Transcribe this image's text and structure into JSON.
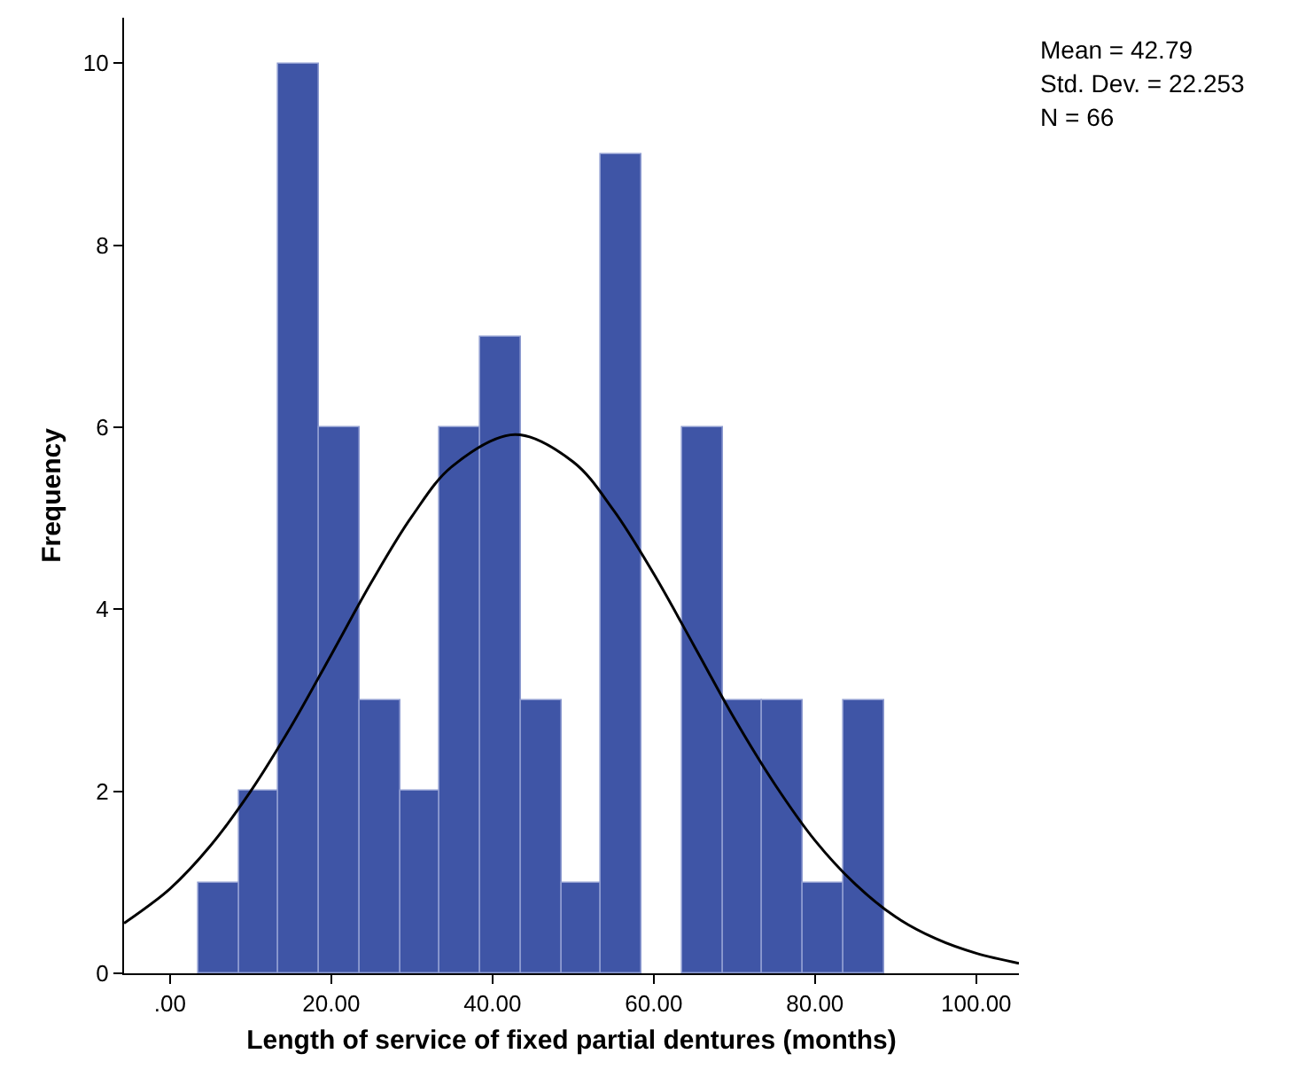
{
  "chart_data": {
    "type": "histogram",
    "xlabel": "Length of service of fixed partial dentures (months)",
    "ylabel": "Frequency",
    "bins": [
      3.5,
      8.5,
      13.5,
      18.5,
      23.5,
      28.5,
      33.5,
      38.5,
      43.5,
      48.5,
      53.5,
      58.5,
      63.5,
      68.5,
      73.5,
      78.5,
      83.5,
      88.5
    ],
    "values": [
      1,
      2,
      10,
      6,
      3,
      2,
      6,
      7,
      3,
      1,
      9,
      0,
      6,
      3,
      3,
      1,
      3
    ],
    "color": "#3f55a6",
    "series": [
      {
        "type": "line",
        "color": "#000000",
        "x": [
          -5.7,
          0,
          5,
          10,
          15,
          20,
          25,
          30,
          35,
          42.79,
          50,
          55,
          60,
          65,
          70,
          75,
          80,
          85,
          90,
          95,
          100,
          105.3
        ],
        "values": [
          0.55,
          0.93,
          1.4,
          2.0,
          2.71,
          3.5,
          4.3,
          5.02,
          5.57,
          5.92,
          5.62,
          5.09,
          4.39,
          3.6,
          2.8,
          2.08,
          1.46,
          0.98,
          0.62,
          0.38,
          0.22,
          0.11
        ]
      }
    ],
    "xlim": [
      -5.7,
      105.3
    ],
    "xticks": [
      {
        "value": 0,
        "label": ".00"
      },
      {
        "value": 20,
        "label": "20.00"
      },
      {
        "value": 40,
        "label": "40.00"
      },
      {
        "value": 60,
        "label": "60.00"
      },
      {
        "value": 80,
        "label": "80.00"
      },
      {
        "value": 100,
        "label": "100.00"
      }
    ],
    "ylim": [
      0,
      10.5
    ],
    "yticks": [
      0,
      2,
      4,
      6,
      8,
      10
    ],
    "annotations": [
      "Mean = 42.79",
      "Std. Dev. = 22.253",
      "N = 66"
    ]
  }
}
